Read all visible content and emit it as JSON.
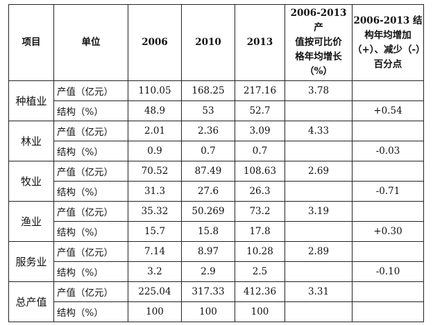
{
  "table": {
    "headers": {
      "item": "项目",
      "unit": "单位",
      "y2006": "2006",
      "y2010": "2010",
      "y2013": "2013",
      "growth": [
        "2006-2013 产",
        "值按可比价",
        "格年均增长",
        "（%）"
      ],
      "structure": [
        "2006-2013 结",
        "构年均增加",
        "（+）、减少（-）",
        "百分点"
      ]
    },
    "rows": [
      {
        "item": "种植业",
        "output": {
          "unit": "产值（亿元）",
          "y2006": "110.05",
          "y2010": "168.25",
          "y2013": "217.16",
          "growth": "3.78",
          "structure": ""
        },
        "structure": {
          "unit": "结构（%）",
          "y2006": "48.9",
          "y2010": "53",
          "y2013": "52.7",
          "growth": "",
          "structure": "+0.54"
        }
      },
      {
        "item": "林业",
        "output": {
          "unit": "产值（亿元）",
          "y2006": "2.01",
          "y2010": "2.36",
          "y2013": "3.09",
          "growth": "4.33",
          "structure": ""
        },
        "structure": {
          "unit": "结构（%）",
          "y2006": "0.9",
          "y2010": "0.7",
          "y2013": "0.7",
          "growth": "",
          "structure": "-0.03"
        }
      },
      {
        "item": "牧业",
        "output": {
          "unit": "产值（亿元）",
          "y2006": "70.52",
          "y2010": "87.49",
          "y2013": "108.63",
          "growth": "2.69",
          "structure": ""
        },
        "structure": {
          "unit": "结构（%）",
          "y2006": "31.3",
          "y2010": "27.6",
          "y2013": "26.3",
          "growth": "",
          "structure": "-0.71"
        }
      },
      {
        "item": "渔业",
        "output": {
          "unit": "产值（亿元）",
          "y2006": "35.32",
          "y2010": "50.269",
          "y2013": "73.2",
          "growth": "3.19",
          "structure": ""
        },
        "structure": {
          "unit": "结构（%）",
          "y2006": "15.7",
          "y2010": "15.8",
          "y2013": "17.8",
          "growth": "",
          "structure": "+0.30"
        }
      },
      {
        "item": "服务业",
        "output": {
          "unit": "产值（亿元）",
          "y2006": "7.14",
          "y2010": "8.97",
          "y2013": "10.28",
          "growth": "2.89",
          "structure": ""
        },
        "structure": {
          "unit": "结构（%）",
          "y2006": "3.2",
          "y2010": "2.9",
          "y2013": "2.5",
          "growth": "",
          "structure": "-0.10"
        }
      },
      {
        "item": "总产值",
        "output": {
          "unit": "产值（亿元）",
          "y2006": "225.04",
          "y2010": "317.33",
          "y2013": "412.36",
          "growth": "3.31",
          "structure": ""
        },
        "structure": {
          "unit": "结构（%）",
          "y2006": "100",
          "y2010": "100",
          "y2013": "100",
          "growth": "",
          "structure": ""
        }
      }
    ]
  }
}
